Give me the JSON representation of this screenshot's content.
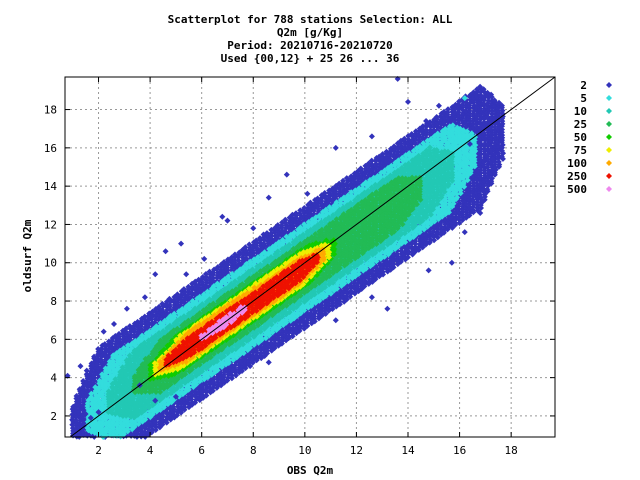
{
  "chart_data": {
    "type": "scatter",
    "title_lines": [
      "Scatterplot for  788 stations Selection: ALL",
      "Q2m [g/Kg]",
      "Period: 20210716-20210720",
      "Used {00,12} + 25 26 ... 36"
    ],
    "xlabel": "OBS Q2m",
    "ylabel": "oldsurf Q2m",
    "xlim": [
      0.7,
      19.7
    ],
    "ylim": [
      0.9,
      19.7
    ],
    "xticks": [
      2,
      4,
      6,
      8,
      10,
      12,
      14,
      16,
      18
    ],
    "yticks": [
      2,
      4,
      6,
      8,
      10,
      12,
      14,
      16,
      18
    ],
    "grid": true,
    "diagonal_line": true,
    "legend_position": "right",
    "legend": [
      {
        "label": "2",
        "color": "#3333bb"
      },
      {
        "label": "5",
        "color": "#33dddd"
      },
      {
        "label": "10",
        "color": "#22c8b4"
      },
      {
        "label": "25",
        "color": "#22bb55"
      },
      {
        "label": "50",
        "color": "#11cc00"
      },
      {
        "label": "75",
        "color": "#eeee00"
      },
      {
        "label": "100",
        "color": "#ffaa00"
      },
      {
        "label": "250",
        "color": "#ee1100"
      },
      {
        "label": "500",
        "color": "#ee88ee"
      }
    ],
    "density_bands": [
      {
        "level": "2",
        "color": "#3333bb",
        "x_range": [
          1.0,
          17.8
        ],
        "spread_below": 3.2,
        "spread_above": 3.2
      },
      {
        "level": "5",
        "color": "#33dddd",
        "x_range": [
          1.6,
          16.6
        ],
        "spread_below": 2.3,
        "spread_above": 2.3
      },
      {
        "level": "10",
        "color": "#22c8b4",
        "x_range": [
          2.4,
          15.8
        ],
        "spread_below": 1.8,
        "spread_above": 1.8
      },
      {
        "level": "25",
        "color": "#22bb55",
        "x_range": [
          3.4,
          14.6
        ],
        "spread_below": 1.35,
        "spread_above": 1.35
      },
      {
        "level": "50",
        "color": "#11cc00",
        "x_range": [
          4.0,
          11.2
        ],
        "spread_below": 1.0,
        "spread_above": 1.0
      },
      {
        "level": "75",
        "color": "#eeee00",
        "x_range": [
          4.2,
          11.0
        ],
        "spread_below": 0.85,
        "spread_above": 0.85
      },
      {
        "level": "100",
        "color": "#ffaa00",
        "x_range": [
          4.4,
          10.8
        ],
        "spread_below": 0.7,
        "spread_above": 0.7
      },
      {
        "level": "250",
        "color": "#ee1100",
        "x_range": [
          4.6,
          10.6
        ],
        "spread_below": 0.55,
        "spread_above": 0.55
      },
      {
        "level": "500",
        "color": "#ee88ee",
        "x_range": [
          6.0,
          7.8
        ],
        "spread_below": 0.28,
        "spread_above": 0.28
      }
    ],
    "outliers": [
      [
        0.8,
        4.1
      ],
      [
        1.3,
        4.6
      ],
      [
        1.5,
        2.1
      ],
      [
        1.7,
        1.9
      ],
      [
        2.0,
        2.2
      ],
      [
        2.2,
        6.4
      ],
      [
        2.6,
        6.8
      ],
      [
        3.1,
        7.6
      ],
      [
        3.8,
        8.2
      ],
      [
        4.2,
        9.4
      ],
      [
        4.6,
        10.6
      ],
      [
        5.2,
        11.0
      ],
      [
        6.1,
        10.2
      ],
      [
        7.0,
        12.2
      ],
      [
        8.6,
        13.4
      ],
      [
        9.3,
        14.6
      ],
      [
        10.1,
        13.6
      ],
      [
        11.2,
        16.0
      ],
      [
        12.6,
        16.6
      ],
      [
        13.6,
        19.6
      ],
      [
        14.0,
        18.4
      ],
      [
        14.7,
        17.4
      ],
      [
        15.2,
        18.2
      ],
      [
        16.4,
        16.2
      ],
      [
        17.3,
        15.4
      ],
      [
        17.6,
        16.4
      ],
      [
        16.7,
        14.8
      ],
      [
        16.9,
        13.2
      ],
      [
        16.2,
        11.6
      ],
      [
        15.7,
        10.0
      ],
      [
        14.8,
        9.6
      ],
      [
        13.2,
        7.6
      ],
      [
        12.6,
        8.2
      ],
      [
        11.2,
        7.0
      ],
      [
        9.8,
        6.6
      ],
      [
        8.6,
        4.8
      ],
      [
        7.2,
        4.4
      ],
      [
        6.0,
        3.6
      ],
      [
        5.0,
        3.0
      ],
      [
        4.2,
        2.8
      ],
      [
        3.6,
        3.6
      ],
      [
        6.8,
        12.4
      ],
      [
        8.0,
        11.8
      ],
      [
        5.4,
        9.4
      ],
      [
        15.8,
        12.2
      ],
      [
        16.8,
        12.6
      ]
    ],
    "highlight_points": [
      {
        "x": 16.2,
        "y": 18.6,
        "color": "#33dddd"
      }
    ]
  }
}
